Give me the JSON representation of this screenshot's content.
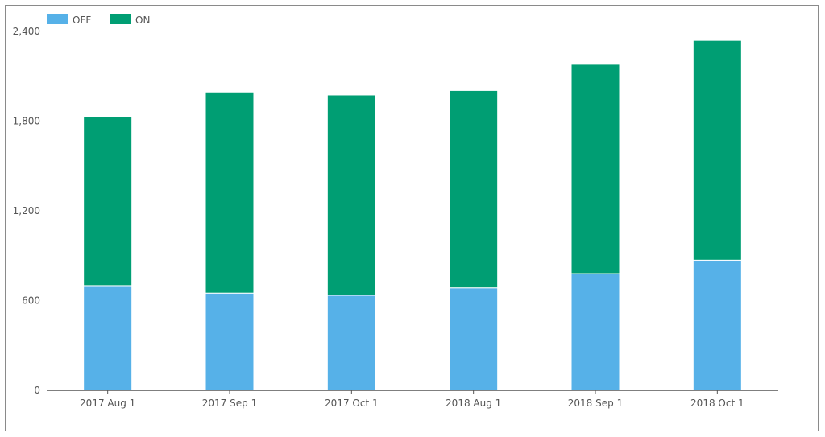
{
  "chart_data": {
    "type": "bar",
    "stacked": true,
    "categories": [
      "2017 Aug 1",
      "2017 Sep 1",
      "2017 Oct 1",
      "2018 Aug 1",
      "2018 Sep 1",
      "2018 Oct 1"
    ],
    "series": [
      {
        "name": "OFF",
        "color": "#56b1e8",
        "values": [
          700,
          650,
          635,
          685,
          780,
          870
        ]
      },
      {
        "name": "ON",
        "color": "#009e73",
        "values": [
          1130,
          1345,
          1340,
          1320,
          1400,
          1470
        ]
      }
    ],
    "y_ticks": [
      "0",
      "600",
      "1,200",
      "1,800",
      "2,400"
    ],
    "ylim": [
      0,
      2400
    ],
    "grid": false,
    "legend_position": "top-left"
  }
}
